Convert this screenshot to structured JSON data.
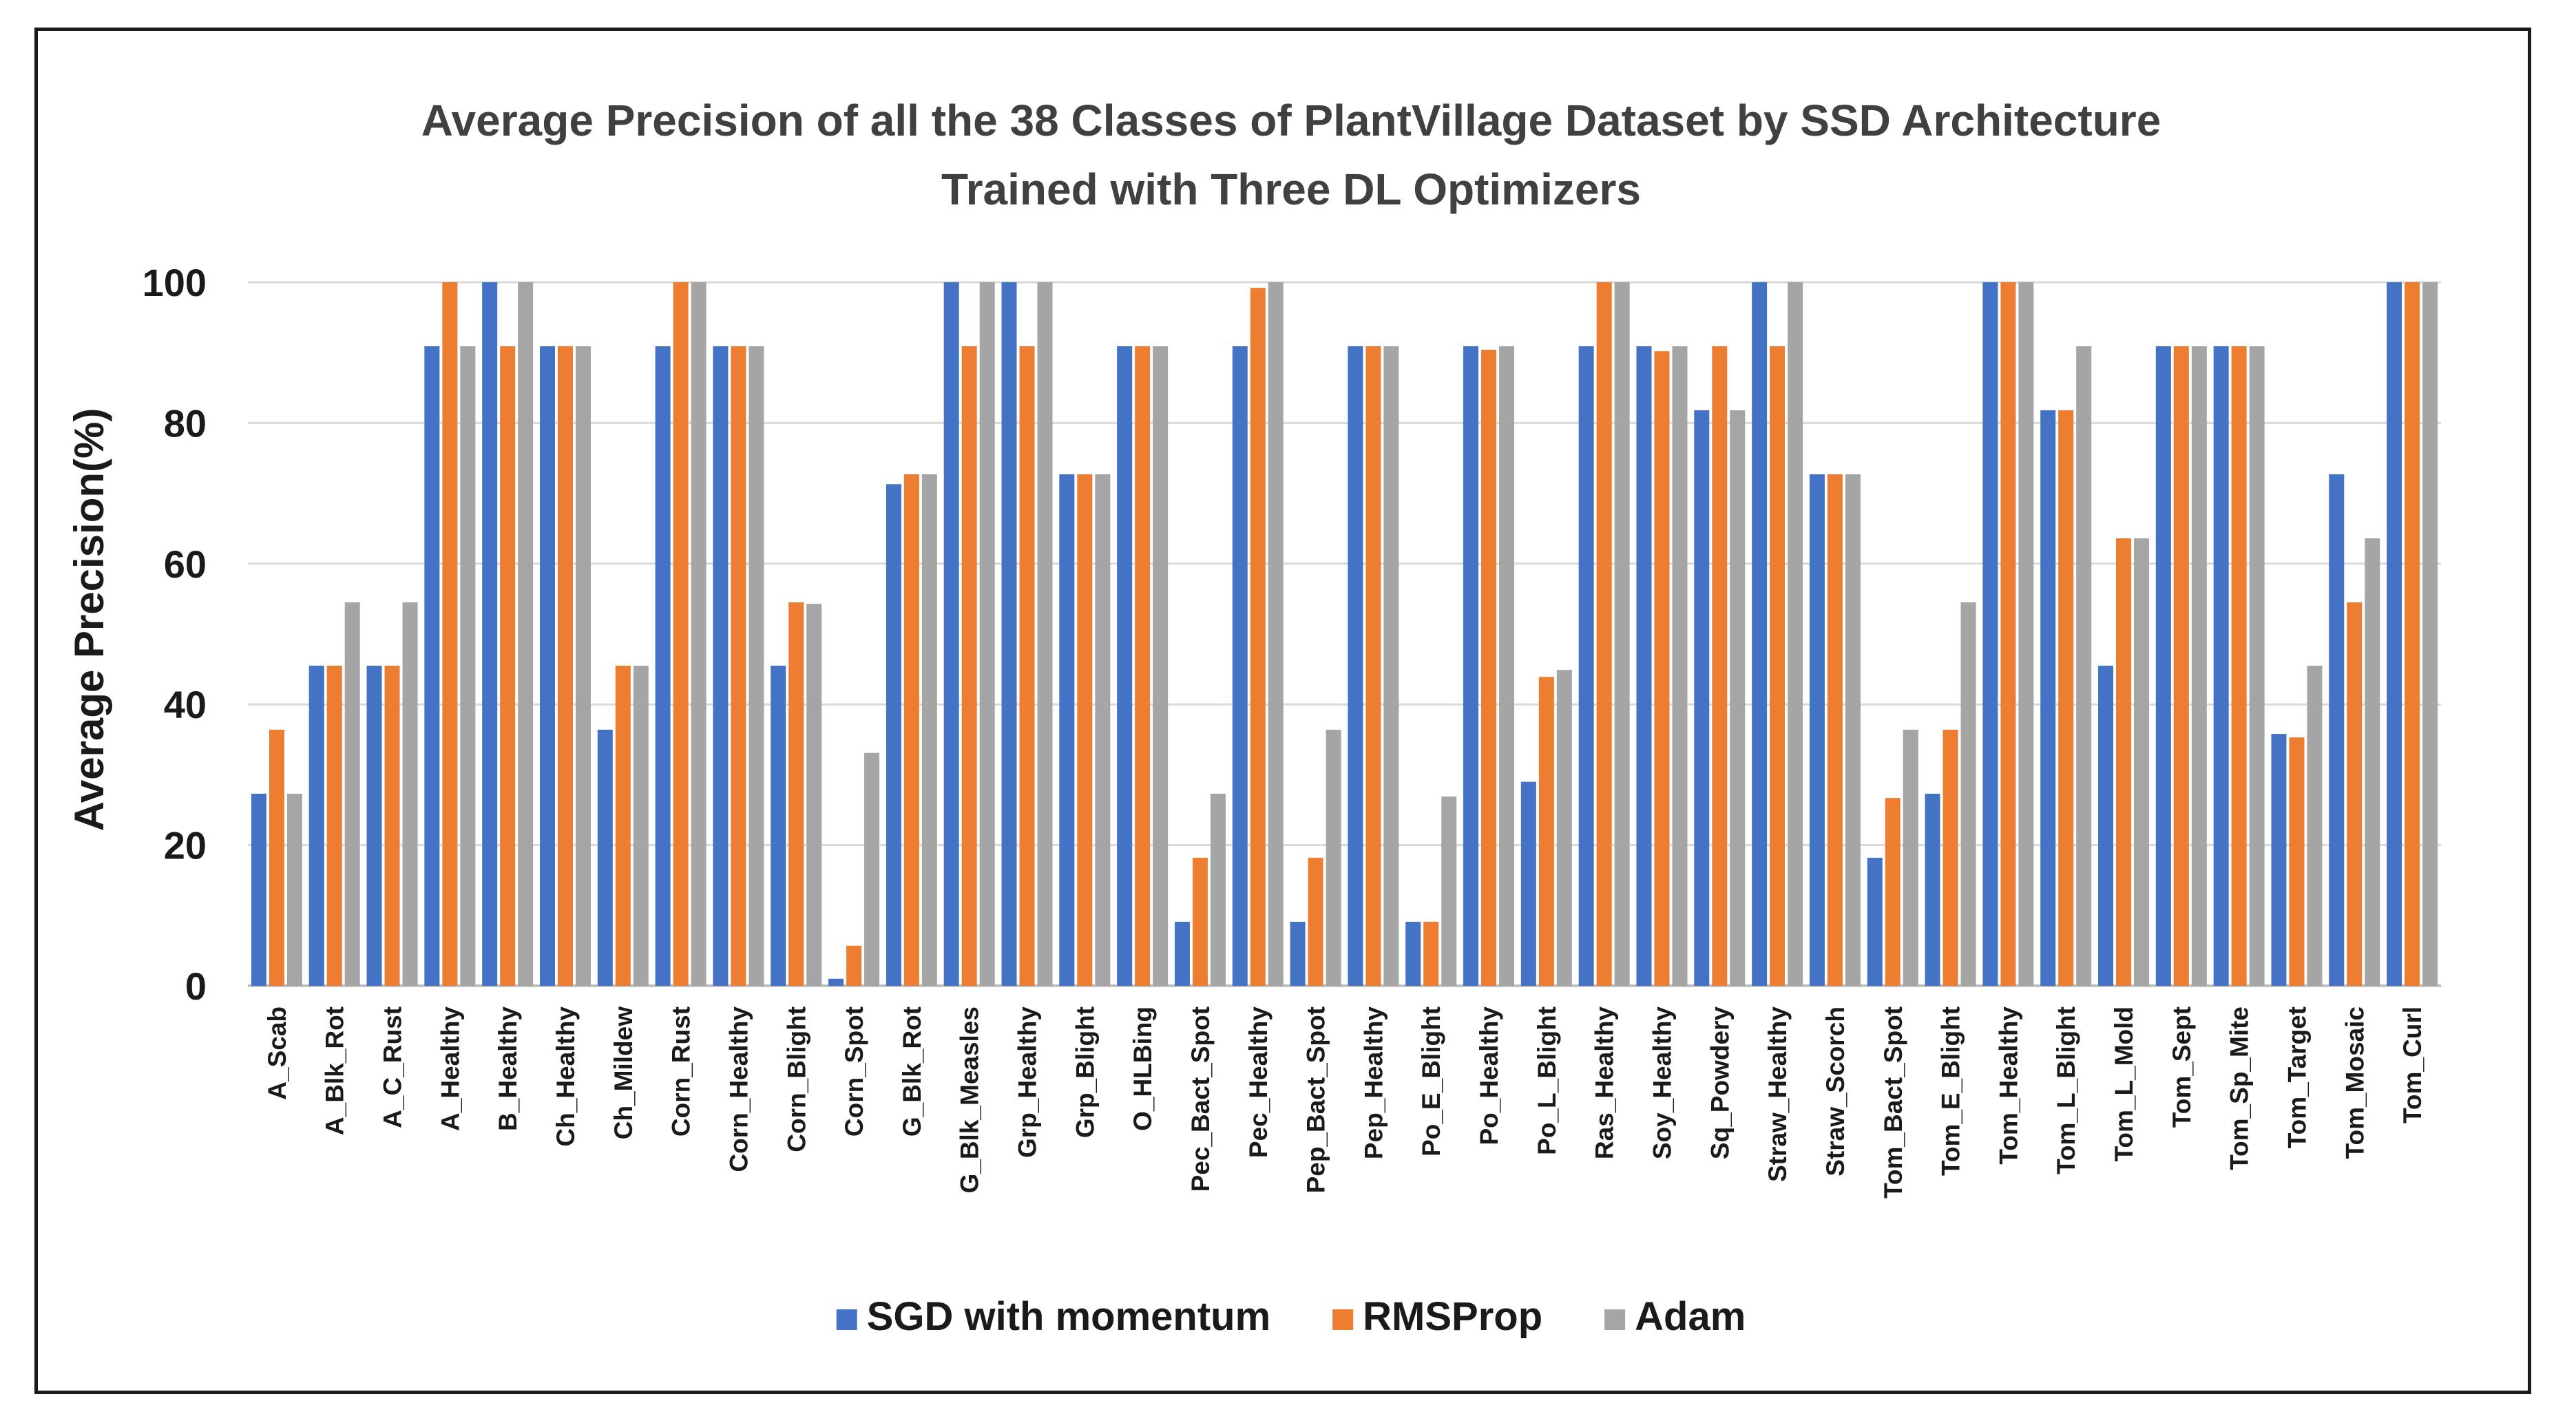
{
  "chart_data": {
    "type": "bar",
    "title_lines": [
      "Average Precision of all the 38 Classes of PlantVillage Dataset by SSD Architecture",
      "Trained with Three DL Optimizers"
    ],
    "xlabel": "",
    "ylabel": "Average Precision(%)",
    "ylim": [
      0,
      100
    ],
    "yticks": [
      0,
      20,
      40,
      60,
      80,
      100
    ],
    "grid": true,
    "legend_position": "bottom",
    "categories": [
      "A_Scab",
      "A_Blk_Rot",
      "A_C_Rust",
      "A_Healthy",
      "B_Healthy",
      "Ch_Healthy",
      "Ch_Mildew",
      "Corn_Rust",
      "Corn_Healthy",
      "Corn_Blight",
      "Corn_Spot",
      "G_Blk_Rot",
      "G_Blk_Measles",
      "Grp_Healthy",
      "Grp_Blight",
      "O_HLBing",
      "Pec_Bact_Spot",
      "Pec_Healthy",
      "Pep_Bact_Spot",
      "Pep_Healthy",
      "Po_E_Blight",
      "Po_Healthy",
      "Po_L_Blight",
      "Ras_Healthy",
      "Soy_Healthy",
      "Sq_Powdery",
      "Straw_Healthy",
      "Straw_Scorch",
      "Tom_Bact_Spot",
      "Tom_E_Blight",
      "Tom_Healthy",
      "Tom_L_Blight",
      "Tom_L_Mold",
      "Tom_Sept",
      "Tom_Sp_Mite",
      "Tom_Target",
      "Tom_Mosaic",
      "Tom_Curl"
    ],
    "series": [
      {
        "name": "SGD with momentum",
        "color": "#4472c4",
        "values": [
          27.3,
          45.5,
          45.5,
          90.9,
          100,
          90.9,
          36.4,
          90.9,
          90.9,
          45.5,
          1,
          71.3,
          100,
          100,
          72.7,
          90.9,
          9.1,
          90.9,
          9.1,
          90.9,
          9.1,
          90.9,
          29,
          90.9,
          90.9,
          81.8,
          100,
          72.7,
          18.2,
          27.3,
          100,
          81.8,
          45.5,
          90.9,
          90.9,
          35.8,
          72.7,
          100
        ]
      },
      {
        "name": "RMSProp",
        "color": "#ed7d31",
        "values": [
          36.4,
          45.5,
          45.5,
          100,
          90.9,
          90.9,
          45.5,
          100,
          90.9,
          54.5,
          5.7,
          72.7,
          90.9,
          90.9,
          72.7,
          90.9,
          18.2,
          99.2,
          18.2,
          90.9,
          9.1,
          90.4,
          43.9,
          100,
          90.2,
          90.9,
          90.9,
          72.7,
          26.7,
          36.4,
          100,
          81.8,
          63.6,
          90.9,
          90.9,
          35.3,
          54.5,
          100
        ]
      },
      {
        "name": "Adam",
        "color": "#a5a5a5",
        "values": [
          27.3,
          54.5,
          54.5,
          90.9,
          100,
          90.9,
          45.5,
          100,
          90.9,
          54.3,
          33.1,
          72.7,
          100,
          100,
          72.7,
          90.9,
          27.3,
          100,
          36.4,
          90.9,
          26.9,
          90.9,
          44.9,
          100,
          90.9,
          81.8,
          100,
          72.7,
          36.4,
          54.5,
          100,
          90.9,
          63.6,
          90.9,
          90.9,
          45.5,
          63.6,
          100
        ]
      }
    ]
  }
}
